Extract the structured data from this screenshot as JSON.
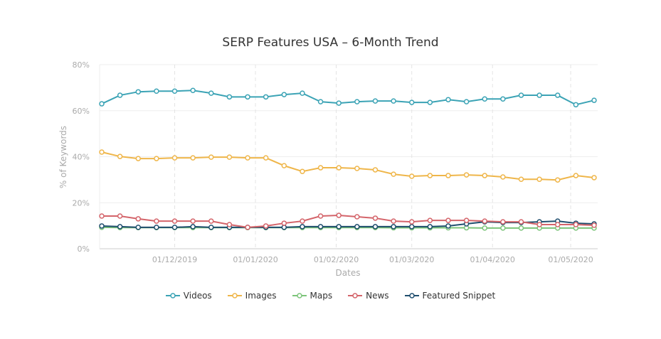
{
  "chart_data": {
    "type": "line",
    "title": "SERP Features USA – 6-Month Trend",
    "xlabel": "Dates",
    "ylabel": "% of Keywords",
    "ylim": [
      0,
      80
    ],
    "yticks": [
      "0%",
      "20%",
      "40%",
      "60%",
      "80%"
    ],
    "xticks": [
      "01/12/2019",
      "01/01/2020",
      "01/02/2020",
      "01/03/2020",
      "01/04/2020",
      "01/05/2020"
    ],
    "grid": true,
    "legend": "bottom",
    "x": [
      "03/11/2019",
      "10/11/2019",
      "17/11/2019",
      "24/11/2019",
      "01/12/2019",
      "08/12/2019",
      "15/12/2019",
      "22/12/2019",
      "29/12/2019",
      "05/01/2020",
      "12/01/2020",
      "19/01/2020",
      "26/01/2020",
      "02/02/2020",
      "09/02/2020",
      "16/02/2020",
      "23/02/2020",
      "01/03/2020",
      "08/03/2020",
      "15/03/2020",
      "22/03/2020",
      "29/03/2020",
      "05/04/2020",
      "12/04/2020",
      "19/04/2020",
      "26/04/2020",
      "03/05/2020",
      "10/05/2020"
    ],
    "series": [
      {
        "name": "Videos",
        "color": "#3ba3b5",
        "values": [
          63,
          66.7,
          68.2,
          68.5,
          68.5,
          68.8,
          67.6,
          66,
          66,
          66,
          67,
          67.6,
          63.9,
          63.3,
          63.9,
          64.2,
          64.2,
          63.6,
          63.6,
          64.8,
          63.9,
          65.1,
          65.1,
          66.7,
          66.7,
          66.7,
          62.6,
          64.5
        ]
      },
      {
        "name": "Images",
        "color": "#efb64a",
        "values": [
          42,
          40.1,
          39.2,
          39.2,
          39.5,
          39.5,
          39.8,
          39.8,
          39.5,
          39.5,
          36.1,
          33.6,
          35.2,
          35.2,
          34.9,
          34.3,
          32.4,
          31.5,
          31.8,
          31.8,
          32.1,
          31.8,
          31.2,
          30.2,
          30.2,
          29.9,
          31.8,
          30.9
        ]
      },
      {
        "name": "Maps",
        "color": "#7cc47a",
        "values": [
          9.3,
          9.2,
          9.2,
          9.2,
          9.2,
          9.2,
          9.2,
          9.2,
          9.2,
          9.2,
          9.2,
          9.2,
          9.2,
          9.2,
          9.2,
          9.2,
          9.1,
          9.1,
          9.1,
          9.1,
          9.1,
          9.0,
          9.0,
          9.0,
          9.0,
          9.0,
          9.0,
          9.0
        ]
      },
      {
        "name": "News",
        "color": "#d4646a",
        "values": [
          14.2,
          14.2,
          13,
          12,
          12,
          12,
          12,
          10.5,
          9.3,
          9.9,
          11.1,
          12,
          14.2,
          14.5,
          13.9,
          13.3,
          12,
          11.7,
          12.3,
          12.3,
          12.3,
          12,
          11.7,
          11.7,
          10.5,
          10.5,
          10.5,
          10.2
        ]
      },
      {
        "name": "Featured Snippet",
        "color": "#1f4e6e",
        "values": [
          9.9,
          9.6,
          9.3,
          9.3,
          9.3,
          9.6,
          9.3,
          9.3,
          9.3,
          9.3,
          9.3,
          9.6,
          9.6,
          9.6,
          9.6,
          9.6,
          9.6,
          9.6,
          9.6,
          9.9,
          10.8,
          11.7,
          11.4,
          11.4,
          11.7,
          12,
          11.1,
          10.8
        ]
      }
    ]
  }
}
